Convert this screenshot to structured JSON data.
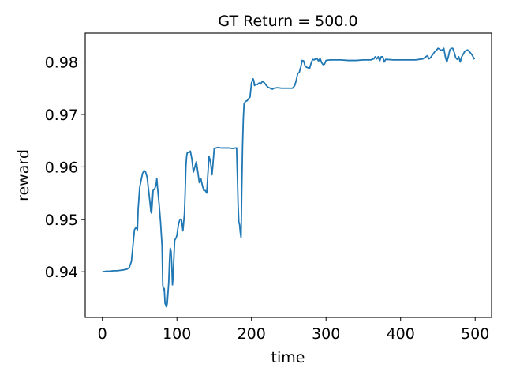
{
  "chart_data": {
    "type": "line",
    "title": "GT Return = 500.0",
    "xlabel": "time",
    "ylabel": "reward",
    "xlim": [
      -23,
      522
    ],
    "ylim": [
      0.9313,
      0.9855
    ],
    "xticks": [
      0,
      100,
      200,
      300,
      400,
      500
    ],
    "yticks": [
      0.94,
      0.95,
      0.96,
      0.97,
      0.98
    ],
    "xtick_labels": [
      "0",
      "100",
      "200",
      "300",
      "400",
      "500"
    ],
    "ytick_labels": [
      "0.94",
      "0.95",
      "0.96",
      "0.97",
      "0.98"
    ],
    "grid": false,
    "series": [
      {
        "color": "#1f77b4",
        "points": [
          [
            0,
            0.94
          ],
          [
            5,
            0.9401
          ],
          [
            10,
            0.9401
          ],
          [
            15,
            0.9402
          ],
          [
            20,
            0.9402
          ],
          [
            25,
            0.9403
          ],
          [
            30,
            0.9404
          ],
          [
            33,
            0.9405
          ],
          [
            36,
            0.9408
          ],
          [
            39,
            0.942
          ],
          [
            41,
            0.945
          ],
          [
            43,
            0.948
          ],
          [
            45,
            0.9485
          ],
          [
            47,
            0.948
          ],
          [
            48,
            0.952
          ],
          [
            50,
            0.956
          ],
          [
            52,
            0.9575
          ],
          [
            54,
            0.9588
          ],
          [
            56,
            0.9593
          ],
          [
            58,
            0.959
          ],
          [
            60,
            0.958
          ],
          [
            62,
            0.9555
          ],
          [
            64,
            0.953
          ],
          [
            65,
            0.9515
          ],
          [
            66,
            0.9512
          ],
          [
            68,
            0.9555
          ],
          [
            70,
            0.9558
          ],
          [
            72,
            0.9565
          ],
          [
            73,
            0.9578
          ],
          [
            74,
            0.956
          ],
          [
            76,
            0.953
          ],
          [
            78,
            0.9495
          ],
          [
            80,
            0.945
          ],
          [
            81,
            0.9375
          ],
          [
            82,
            0.9365
          ],
          [
            83,
            0.9368
          ],
          [
            84,
            0.934
          ],
          [
            86,
            0.9333
          ],
          [
            87,
            0.934
          ],
          [
            89,
            0.938
          ],
          [
            90,
            0.942
          ],
          [
            91,
            0.9445
          ],
          [
            92,
            0.944
          ],
          [
            93,
            0.9415
          ],
          [
            94,
            0.9375
          ],
          [
            95,
            0.9395
          ],
          [
            96,
            0.943
          ],
          [
            97,
            0.946
          ],
          [
            99,
            0.9465
          ],
          [
            100,
            0.947
          ],
          [
            102,
            0.949
          ],
          [
            104,
            0.95
          ],
          [
            106,
            0.95
          ],
          [
            107,
            0.949
          ],
          [
            108,
            0.9478
          ],
          [
            110,
            0.951
          ],
          [
            111,
            0.955
          ],
          [
            112,
            0.96
          ],
          [
            113,
            0.962
          ],
          [
            114,
            0.9628
          ],
          [
            116,
            0.9627
          ],
          [
            118,
            0.963
          ],
          [
            120,
            0.9615
          ],
          [
            122,
            0.959
          ],
          [
            124,
            0.96
          ],
          [
            126,
            0.961
          ],
          [
            128,
            0.959
          ],
          [
            130,
            0.957
          ],
          [
            132,
            0.9578
          ],
          [
            134,
            0.9565
          ],
          [
            136,
            0.9555
          ],
          [
            138,
            0.9555
          ],
          [
            140,
            0.955
          ],
          [
            141,
            0.9575
          ],
          [
            143,
            0.962
          ],
          [
            145,
            0.961
          ],
          [
            147,
            0.9585
          ],
          [
            148,
            0.96
          ],
          [
            150,
            0.9635
          ],
          [
            155,
            0.9637
          ],
          [
            160,
            0.9636
          ],
          [
            165,
            0.9636
          ],
          [
            170,
            0.9636
          ],
          [
            175,
            0.9635
          ],
          [
            178,
            0.9636
          ],
          [
            180,
            0.9636
          ],
          [
            181,
            0.9585
          ],
          [
            182,
            0.953
          ],
          [
            183,
            0.9495
          ],
          [
            184,
            0.949
          ],
          [
            185,
            0.9475
          ],
          [
            186,
            0.9465
          ],
          [
            187,
            0.956
          ],
          [
            188,
            0.964
          ],
          [
            189,
            0.969
          ],
          [
            190,
            0.972
          ],
          [
            192,
            0.9725
          ],
          [
            194,
            0.9726
          ],
          [
            196,
            0.973
          ],
          [
            198,
            0.9733
          ],
          [
            200,
            0.976
          ],
          [
            202,
            0.9768
          ],
          [
            203,
            0.9765
          ],
          [
            204,
            0.9755
          ],
          [
            206,
            0.9758
          ],
          [
            208,
            0.9757
          ],
          [
            210,
            0.976
          ],
          [
            212,
            0.9758
          ],
          [
            214,
            0.9762
          ],
          [
            216,
            0.9762
          ],
          [
            218,
            0.9759
          ],
          [
            220,
            0.9755
          ],
          [
            222,
            0.9752
          ],
          [
            225,
            0.975
          ],
          [
            228,
            0.9748
          ],
          [
            230,
            0.975
          ],
          [
            235,
            0.9751
          ],
          [
            240,
            0.975
          ],
          [
            245,
            0.975
          ],
          [
            250,
            0.975
          ],
          [
            255,
            0.975
          ],
          [
            258,
            0.9755
          ],
          [
            260,
            0.9765
          ],
          [
            262,
            0.9778
          ],
          [
            264,
            0.978
          ],
          [
            266,
            0.979
          ],
          [
            268,
            0.9803
          ],
          [
            270,
            0.9802
          ],
          [
            272,
            0.9792
          ],
          [
            274,
            0.979
          ],
          [
            276,
            0.9789
          ],
          [
            278,
            0.9788
          ],
          [
            280,
            0.9798
          ],
          [
            282,
            0.9805
          ],
          [
            284,
            0.9804
          ],
          [
            286,
            0.9806
          ],
          [
            288,
            0.9806
          ],
          [
            290,
            0.9802
          ],
          [
            292,
            0.9807
          ],
          [
            294,
            0.9799
          ],
          [
            296,
            0.9795
          ],
          [
            298,
            0.9796
          ],
          [
            300,
            0.9803
          ],
          [
            305,
            0.9804
          ],
          [
            310,
            0.9804
          ],
          [
            320,
            0.9804
          ],
          [
            330,
            0.9803
          ],
          [
            340,
            0.9803
          ],
          [
            350,
            0.9804
          ],
          [
            360,
            0.9804
          ],
          [
            364,
            0.9806
          ],
          [
            366,
            0.981
          ],
          [
            368,
            0.9806
          ],
          [
            370,
            0.981
          ],
          [
            372,
            0.9802
          ],
          [
            374,
            0.981
          ],
          [
            376,
            0.981
          ],
          [
            378,
            0.98
          ],
          [
            380,
            0.9805
          ],
          [
            390,
            0.9804
          ],
          [
            400,
            0.9804
          ],
          [
            410,
            0.9804
          ],
          [
            420,
            0.9804
          ],
          [
            430,
            0.9806
          ],
          [
            434,
            0.981
          ],
          [
            436,
            0.9812
          ],
          [
            438,
            0.9806
          ],
          [
            440,
            0.9808
          ],
          [
            442,
            0.9812
          ],
          [
            444,
            0.9816
          ],
          [
            446,
            0.982
          ],
          [
            448,
            0.9822
          ],
          [
            450,
            0.9826
          ],
          [
            452,
            0.9825
          ],
          [
            454,
            0.9822
          ],
          [
            456,
            0.9823
          ],
          [
            458,
            0.9826
          ],
          [
            460,
            0.981
          ],
          [
            462,
            0.98
          ],
          [
            464,
            0.981
          ],
          [
            466,
            0.9823
          ],
          [
            468,
            0.9826
          ],
          [
            470,
            0.9826
          ],
          [
            472,
            0.9818
          ],
          [
            474,
            0.9808
          ],
          [
            476,
            0.9805
          ],
          [
            478,
            0.981
          ],
          [
            480,
            0.98
          ],
          [
            482,
            0.981
          ],
          [
            484,
            0.9815
          ],
          [
            486,
            0.982
          ],
          [
            488,
            0.9822
          ],
          [
            490,
            0.9823
          ],
          [
            492,
            0.982
          ],
          [
            494,
            0.9817
          ],
          [
            496,
            0.9813
          ],
          [
            498,
            0.9808
          ],
          [
            499,
            0.9805
          ]
        ]
      }
    ]
  }
}
